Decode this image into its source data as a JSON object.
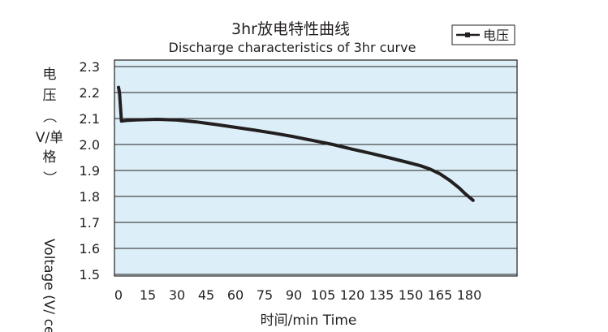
{
  "chart_data": {
    "type": "line",
    "title": "3hr放电特性曲线",
    "subtitle": "Discharge characteristics of 3hr curve",
    "xlabel": "时间/min Time",
    "ylabel_cn_parts": [
      "电",
      "压",
      "（",
      "V/单",
      "格",
      "）"
    ],
    "ylabel_en": "Voltage (V/ cell)",
    "xlim": [
      0,
      182
    ],
    "ylim": [
      1.5,
      2.32
    ],
    "x_ticks": [
      0,
      15,
      30,
      45,
      60,
      75,
      90,
      105,
      120,
      135,
      150,
      165,
      180
    ],
    "y_ticks": [
      "1.5",
      "1.6",
      "1.7",
      "1.8",
      "1.9",
      "2.0",
      "2.1",
      "2.2",
      "2.3"
    ],
    "grid": "horizontal",
    "legend": {
      "position": "top-right",
      "label": "电压"
    },
    "series": [
      {
        "name": "电压",
        "x": [
          0,
          0.5,
          1.5,
          5,
          10,
          20,
          30,
          40,
          50,
          60,
          70,
          80,
          90,
          100,
          110,
          120,
          130,
          140,
          150,
          155,
          160,
          165,
          170,
          175,
          178,
          182
        ],
        "values": [
          2.22,
          2.2,
          2.09,
          2.093,
          2.095,
          2.097,
          2.094,
          2.087,
          2.077,
          2.066,
          2.055,
          2.043,
          2.03,
          2.015,
          2.0,
          1.982,
          1.965,
          1.947,
          1.928,
          1.918,
          1.905,
          1.887,
          1.862,
          1.832,
          1.81,
          1.785
        ]
      }
    ]
  }
}
